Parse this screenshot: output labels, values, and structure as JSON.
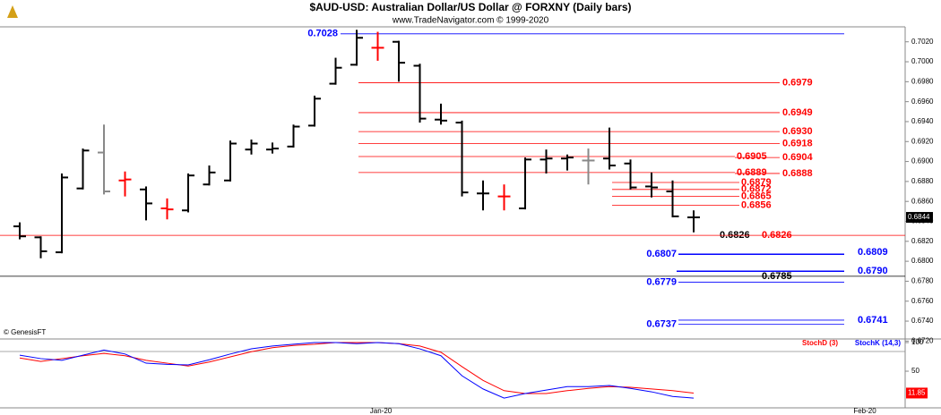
{
  "chart_data": [
    {
      "type": "ohlc",
      "title": "$AUD-USD:  Australian Dollar/US Dollar @ FORXNY  (Daily bars)",
      "subtitle": "www.TradeNavigator.com © 1999-2020",
      "source": "© GenesisFT",
      "x_labels": [
        "Jan-20",
        "Feb-20"
      ],
      "open": [
        0.6835,
        0.6824,
        0.6809,
        0.6873,
        0.6909,
        0.6881,
        0.6872,
        0.6853,
        0.6851,
        0.6877,
        0.6881,
        0.6912,
        0.6912,
        0.6915,
        0.6936,
        0.6978,
        0.6997,
        0.7014,
        0.702,
        0.6996,
        0.6942,
        0.6939,
        0.6868,
        0.6865,
        0.6853,
        0.6902,
        0.6903,
        0.6901,
        0.6903,
        0.6898,
        0.6875,
        0.687,
        0.6844
      ],
      "high": [
        0.6839,
        0.6825,
        0.6888,
        0.6913,
        0.6937,
        0.689,
        0.6875,
        0.6863,
        0.6888,
        0.6896,
        0.6921,
        0.6922,
        0.6919,
        0.6937,
        0.6966,
        0.7004,
        0.7032,
        0.703,
        0.7021,
        0.6998,
        0.6958,
        0.6941,
        0.6881,
        0.6877,
        0.6904,
        0.6912,
        0.6907,
        0.6913,
        0.6934,
        0.6902,
        0.6889,
        0.6881,
        0.6851
      ],
      "low": [
        0.6822,
        0.6803,
        0.6808,
        0.6872,
        0.6867,
        0.6865,
        0.6841,
        0.6842,
        0.6849,
        0.6876,
        0.688,
        0.6907,
        0.6908,
        0.6914,
        0.6935,
        0.6977,
        0.6996,
        0.7001,
        0.698,
        0.6939,
        0.6937,
        0.6865,
        0.6851,
        0.6851,
        0.6852,
        0.6888,
        0.6891,
        0.6877,
        0.6892,
        0.6872,
        0.6864,
        0.6844,
        0.6829
      ],
      "close": [
        0.6825,
        0.681,
        0.6884,
        0.6911,
        0.687,
        0.6882,
        0.6858,
        0.6852,
        0.6886,
        0.6889,
        0.6918,
        0.6918,
        0.6913,
        0.6935,
        0.6963,
        0.6994,
        0.7024,
        0.7014,
        0.6999,
        0.6943,
        0.6941,
        0.6869,
        0.6868,
        0.6865,
        0.6902,
        0.6903,
        0.6904,
        0.6901,
        0.6896,
        0.6874,
        0.6874,
        0.6845,
        0.6844
      ],
      "colors": [
        "#000000",
        "#000000",
        "#000000",
        "#000000",
        "#888888",
        "#ff0000",
        "#000000",
        "#ff0000",
        "#000000",
        "#000000",
        "#000000",
        "#000000",
        "#000000",
        "#000000",
        "#000000",
        "#000000",
        "#000000",
        "#ff0000",
        "#000000",
        "#000000",
        "#000000",
        "#000000",
        "#000000",
        "#ff0000",
        "#000000",
        "#000000",
        "#000000",
        "#888888",
        "#000000",
        "#000000",
        "#000000",
        "#000000",
        "#000000"
      ],
      "last_label": "0.6844",
      "ylim": [
        0.6723,
        0.7035
      ],
      "yticks": [
        {
          "value": 0.672,
          "label": "0.6720"
        },
        {
          "value": 0.674,
          "label": "0.6740"
        },
        {
          "value": 0.676,
          "label": "0.6760"
        },
        {
          "value": 0.678,
          "label": "0.6780"
        },
        {
          "value": 0.68,
          "label": "0.6800"
        },
        {
          "value": 0.682,
          "label": "0.6820"
        },
        {
          "value": 0.684,
          "label": "0.6840"
        },
        {
          "value": 0.686,
          "label": "0.6860"
        },
        {
          "value": 0.688,
          "label": "0.6880"
        },
        {
          "value": 0.69,
          "label": "0.6900"
        },
        {
          "value": 0.692,
          "label": "0.6920"
        },
        {
          "value": 0.694,
          "label": "0.6940"
        },
        {
          "value": 0.696,
          "label": "0.6960"
        },
        {
          "value": 0.698,
          "label": "0.6980"
        },
        {
          "value": 0.7,
          "label": "0.7000"
        },
        {
          "value": 0.702,
          "label": "0.7020"
        }
      ],
      "levels": [
        {
          "value": 0.7028,
          "label": "0.7028",
          "color": "#0000ff"
        },
        {
          "value": 0.6979,
          "label": "0.6979",
          "color": "#ff0000"
        },
        {
          "value": 0.6949,
          "label": "0.6949",
          "color": "#ff0000"
        },
        {
          "value": 0.693,
          "label": "0.6930",
          "color": "#ff0000"
        },
        {
          "value": 0.6918,
          "label": "0.6918",
          "color": "#ff0000"
        },
        {
          "value": 0.6905,
          "label": "0.6905",
          "color": "#ff0000"
        },
        {
          "value": 0.6904,
          "label": "0.6904",
          "color": "#ff0000"
        },
        {
          "value": 0.6889,
          "label": "0.6889",
          "color": "#ff0000"
        },
        {
          "value": 0.6888,
          "label": "0.6888",
          "color": "#ff0000"
        },
        {
          "value": 0.6879,
          "label": "0.6879",
          "color": "#ff0000"
        },
        {
          "value": 0.6872,
          "label": "0.6872",
          "color": "#ff0000"
        },
        {
          "value": 0.6865,
          "label": "0.6865",
          "color": "#ff0000"
        },
        {
          "value": 0.6856,
          "label": "0.6856",
          "color": "#ff0000"
        },
        {
          "value": 0.6826,
          "label": "0.6826",
          "color": "#000000"
        },
        {
          "value": 0.6826,
          "label": "0.6826",
          "color": "#ff0000"
        },
        {
          "value": 0.6807,
          "label": "0.6807",
          "color": "#0000ff"
        },
        {
          "value": 0.6809,
          "label": "0.6809",
          "color": "#0000ff"
        },
        {
          "value": 0.679,
          "label": "0.6790",
          "color": "#0000ff"
        },
        {
          "value": 0.6785,
          "label": "0.6785",
          "color": "#000000"
        },
        {
          "value": 0.6779,
          "label": "0.6779",
          "color": "#0000ff"
        },
        {
          "value": 0.6737,
          "label": "0.6737",
          "color": "#0000ff"
        },
        {
          "value": 0.6741,
          "label": "0.6741",
          "color": "#0000ff"
        }
      ]
    },
    {
      "type": "line",
      "ylim": [
        -14,
        104.7
      ],
      "yticks": [
        100,
        50
      ],
      "series": [
        {
          "name": "StochD (3)",
          "color": "#ff0000",
          "values": [
            73,
            67,
            72,
            77,
            81,
            77,
            69,
            64,
            59,
            66,
            75,
            84,
            91,
            95,
            97,
            100,
            100,
            100,
            98,
            94,
            83,
            58,
            34,
            16,
            11,
            11,
            16,
            20,
            23,
            22,
            19,
            16,
            11.85
          ]
        },
        {
          "name": "StochK (14,3)",
          "color": "#0000ff",
          "values": [
            78,
            72,
            69,
            78,
            87,
            80,
            64,
            62,
            61,
            70,
            80,
            89,
            94,
            97,
            100,
            100,
            98,
            100,
            98,
            89,
            77,
            42,
            19,
            3,
            11,
            17,
            23,
            23,
            25,
            20,
            14,
            6,
            3
          ]
        }
      ]
    }
  ]
}
